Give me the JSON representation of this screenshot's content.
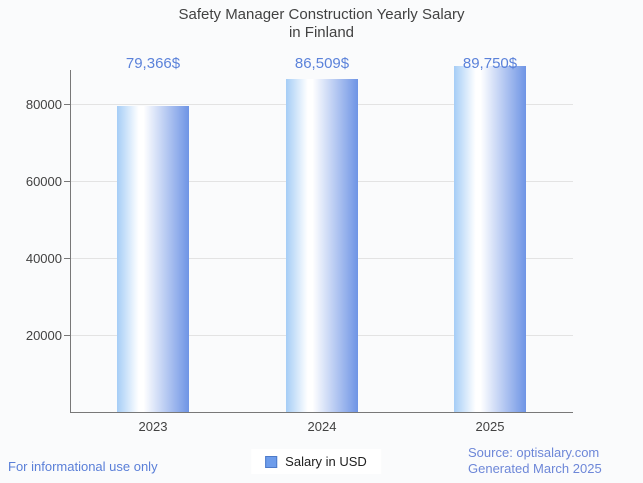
{
  "title": {
    "line1": "Safety Manager Construction Yearly Salary",
    "line2": "in Finland"
  },
  "chart_data": {
    "type": "bar",
    "title": "Safety Manager Construction Yearly Salary in Finland",
    "categories": [
      "2023",
      "2024",
      "2025"
    ],
    "values": [
      79366,
      86509,
      89750
    ],
    "value_labels": [
      "79,366$",
      "86,509$",
      "89,750$"
    ],
    "series_name": "Salary in USD",
    "xlabel": "",
    "ylabel": "",
    "ylim": [
      0,
      90000
    ],
    "yticks": [
      20000,
      40000,
      60000,
      80000
    ],
    "ytick_labels": [
      "20000",
      "40000",
      "60000",
      "80000"
    ],
    "grid": true,
    "legend_position": "bottom"
  },
  "legend": {
    "label": "Salary in USD"
  },
  "footer": {
    "left": "For informational use only",
    "source": "Source: optisalary.com",
    "generated": "Generated March 2025"
  },
  "colors": {
    "page-bg": "#fafbfc",
    "title-color": "#424242",
    "axis-text": "#424242",
    "axis-color": "#787878",
    "grid-color": "#e3e3e3",
    "value-label-color": "#5b82da",
    "bar-gradient-left": "#a5cdf6",
    "bar-gradient-mid": "#ffffff",
    "bar-gradient-right": "#6e94e5",
    "legend-bg": "#ffffff",
    "legend-fill": "#6d9ceb",
    "legend-border": "#4d7ac9",
    "footer-left-color": "#5a7fd8",
    "footer-right-color": "#6d87d8"
  }
}
